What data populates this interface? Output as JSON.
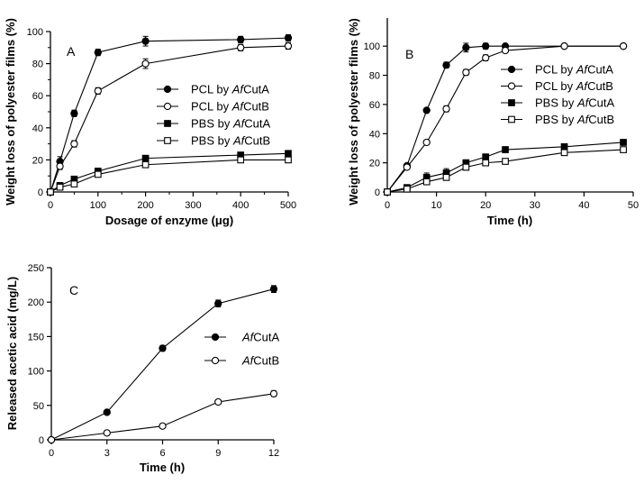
{
  "chart_data": [
    {
      "type": "line",
      "panel_label": "A",
      "xlabel_prefix": "Dosage of enzyme (",
      "xlabel_mu": "μ",
      "xlabel_suffix": "g)",
      "ylabel": "Weight loss of polyester films (%)",
      "xlim": [
        0,
        500
      ],
      "ylim": [
        0,
        100
      ],
      "xticks": [
        0,
        100,
        200,
        300,
        400,
        500
      ],
      "yticks": [
        0,
        20,
        40,
        60,
        80,
        100
      ],
      "legend_position": "right-middle",
      "series": [
        {
          "prefix": "PCL by ",
          "italic": "Af",
          "suffix": "CutA",
          "marker": "circle-filled",
          "x": [
            0,
            20,
            50,
            100,
            200,
            400,
            500
          ],
          "y": [
            0,
            19,
            49,
            87,
            94,
            95,
            96
          ],
          "err": [
            0,
            3,
            2,
            2,
            3,
            2,
            2
          ]
        },
        {
          "prefix": "PCL by ",
          "italic": "Af",
          "suffix": "CutB",
          "marker": "circle-open",
          "x": [
            0,
            20,
            50,
            100,
            200,
            400,
            500
          ],
          "y": [
            0,
            16,
            30,
            63,
            80,
            90,
            91
          ],
          "err": [
            0,
            2,
            2,
            2,
            3,
            2,
            2
          ]
        },
        {
          "prefix": "PBS by ",
          "italic": "Af",
          "suffix": "CutA",
          "marker": "square-filled",
          "x": [
            0,
            20,
            50,
            100,
            200,
            400,
            500
          ],
          "y": [
            0,
            4,
            8,
            13,
            21,
            23,
            24
          ],
          "err": [
            0,
            1,
            1,
            1,
            1,
            1,
            1
          ]
        },
        {
          "prefix": "PBS by ",
          "italic": "Af",
          "suffix": "CutB",
          "marker": "square-open",
          "x": [
            0,
            20,
            50,
            100,
            200,
            400,
            500
          ],
          "y": [
            0,
            3,
            5,
            11,
            17,
            20,
            20
          ],
          "err": [
            0,
            1,
            1,
            1,
            1,
            1,
            1
          ]
        }
      ]
    },
    {
      "type": "line",
      "panel_label": "B",
      "xlabel": "Time (h)",
      "ylabel": "Weight loss of polyester films (%)",
      "xlim": [
        0,
        50
      ],
      "ylim": [
        0,
        110
      ],
      "xticks": [
        0,
        10,
        20,
        30,
        40,
        50
      ],
      "yticks": [
        0,
        20,
        40,
        60,
        80,
        100
      ],
      "legend_position": "right-middle",
      "series": [
        {
          "prefix": "PCL by ",
          "italic": "Af",
          "suffix": "CutA",
          "marker": "circle-filled",
          "x": [
            0,
            4,
            8,
            12,
            16,
            20,
            24,
            36,
            48
          ],
          "y": [
            0,
            18,
            56,
            87,
            99,
            100,
            100,
            100,
            100
          ],
          "err": [
            0,
            1,
            1,
            2,
            3,
            2,
            1,
            1,
            1
          ]
        },
        {
          "prefix": "PCL by ",
          "italic": "Af",
          "suffix": "CutB",
          "marker": "circle-open",
          "x": [
            0,
            4,
            8,
            12,
            16,
            20,
            24,
            36,
            48
          ],
          "y": [
            0,
            17,
            34,
            57,
            82,
            92,
            97,
            100,
            100
          ],
          "err": [
            0,
            1,
            1,
            2,
            2,
            2,
            1,
            1,
            1
          ]
        },
        {
          "prefix": "PBS by ",
          "italic": "Af",
          "suffix": "CutA",
          "marker": "square-filled",
          "x": [
            0,
            4,
            8,
            12,
            16,
            20,
            24,
            36,
            48
          ],
          "y": [
            0,
            3,
            10,
            13,
            20,
            24,
            29,
            31,
            34
          ],
          "err": [
            0,
            1,
            3,
            3,
            2,
            2,
            2,
            1,
            1
          ]
        },
        {
          "prefix": "PBS by ",
          "italic": "Af",
          "suffix": "CutB",
          "marker": "square-open",
          "x": [
            0,
            4,
            8,
            12,
            16,
            20,
            24,
            36,
            48
          ],
          "y": [
            0,
            2,
            7,
            10,
            17,
            20,
            21,
            27,
            29
          ],
          "err": [
            0,
            1,
            2,
            2,
            2,
            2,
            1,
            1,
            1
          ]
        }
      ]
    },
    {
      "type": "line",
      "panel_label": "C",
      "xlabel": "Time (h)",
      "ylabel": "Released acetic acid (mg/L)",
      "xlim": [
        0,
        12
      ],
      "ylim": [
        0,
        250
      ],
      "xticks": [
        0,
        3,
        6,
        9,
        12
      ],
      "yticks": [
        0,
        50,
        100,
        150,
        200,
        250
      ],
      "legend_position": "right-middle",
      "series": [
        {
          "prefix": "",
          "italic": "Af",
          "suffix": "CutA",
          "marker": "circle-filled",
          "x": [
            0,
            3,
            6,
            9,
            12
          ],
          "y": [
            0,
            40,
            133,
            198,
            219
          ],
          "err": [
            0,
            2,
            4,
            5,
            5
          ]
        },
        {
          "prefix": "",
          "italic": "Af",
          "suffix": "CutB",
          "marker": "circle-open",
          "x": [
            0,
            3,
            6,
            9,
            12
          ],
          "y": [
            0,
            10,
            20,
            55,
            67
          ],
          "err": [
            0,
            1,
            2,
            3,
            4
          ]
        }
      ]
    }
  ]
}
